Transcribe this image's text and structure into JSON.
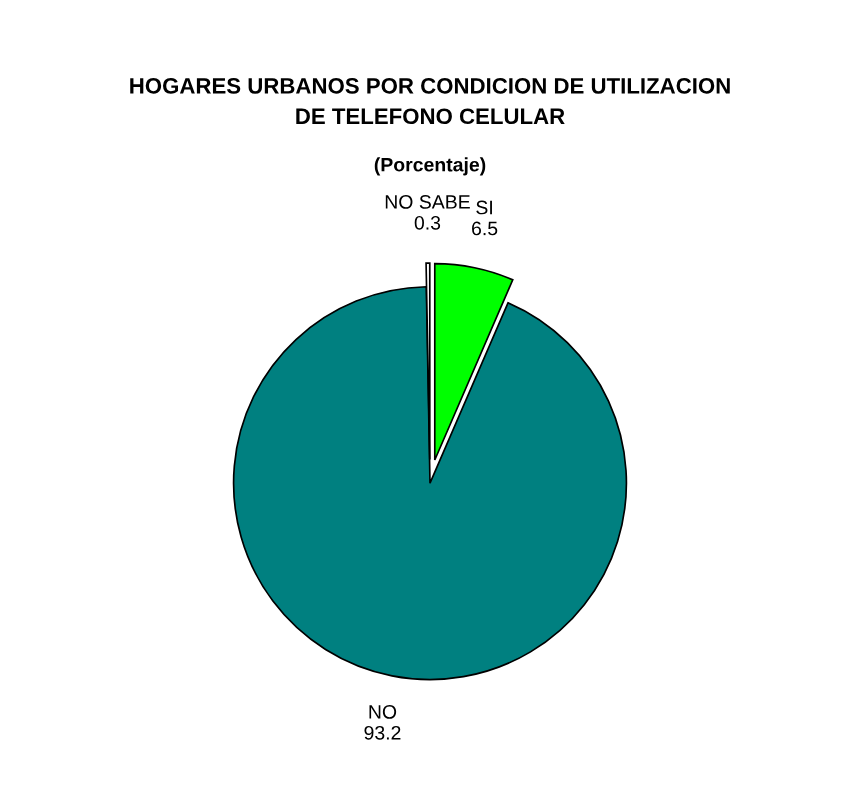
{
  "chart_data": {
    "type": "pie",
    "title": "HOGARES URBANOS POR CONDICION DE UTILIZACION\nDE TELEFONO CELULAR",
    "subtitle": "(Porcentaje)",
    "categories": [
      "SI",
      "NO",
      "NO SABE"
    ],
    "values": [
      6.5,
      93.2,
      0.3
    ],
    "colors": [
      "#00ff00",
      "#008080",
      "#ffffff"
    ],
    "data_labels": true,
    "legend": false
  }
}
